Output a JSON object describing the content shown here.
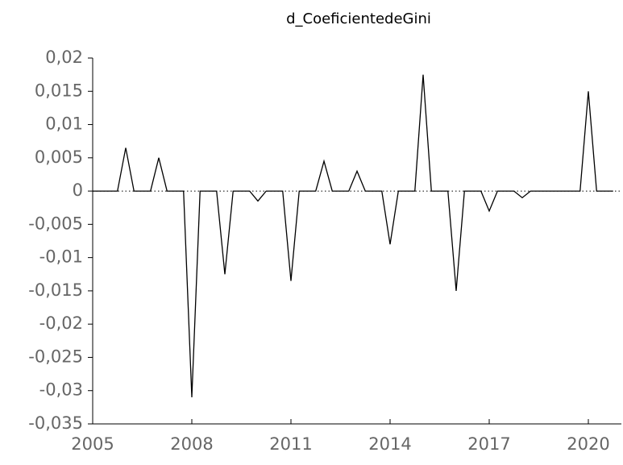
{
  "chart_data": {
    "type": "line",
    "title": "d_CoeficientedeGini",
    "x": [
      2005,
      2005.25,
      2005.5,
      2005.75,
      2006,
      2006.25,
      2006.5,
      2006.75,
      2007,
      2007.25,
      2007.5,
      2007.75,
      2008,
      2008.25,
      2008.5,
      2008.75,
      2009,
      2009.25,
      2009.5,
      2009.75,
      2010,
      2010.25,
      2010.5,
      2010.75,
      2011,
      2011.25,
      2011.5,
      2011.75,
      2012,
      2012.25,
      2012.5,
      2012.75,
      2013,
      2013.25,
      2013.5,
      2013.75,
      2014,
      2014.25,
      2014.5,
      2014.75,
      2015,
      2015.25,
      2015.5,
      2015.75,
      2016,
      2016.25,
      2016.5,
      2016.75,
      2017,
      2017.25,
      2017.5,
      2017.75,
      2018,
      2018.25,
      2018.5,
      2018.75,
      2019,
      2019.25,
      2019.5,
      2019.75,
      2020,
      2020.25,
      2020.5,
      2020.75
    ],
    "series": [
      {
        "name": "d_CoeficientedeGini",
        "color": "#000000",
        "values": [
          0,
          0,
          0,
          0,
          0.0065,
          0,
          0,
          0,
          0.005,
          0,
          0,
          0,
          -0.031,
          0,
          0,
          0,
          -0.0125,
          0,
          0,
          0,
          -0.0015,
          0,
          0,
          0,
          -0.0135,
          0,
          0,
          0,
          0.0045,
          0,
          0,
          0,
          0.003,
          0,
          0,
          0,
          -0.008,
          0,
          0,
          0,
          0.0175,
          0,
          0,
          0,
          -0.015,
          0,
          0,
          0,
          -0.003,
          0,
          0,
          0,
          -0.001,
          0,
          0,
          0,
          0,
          0,
          0,
          0,
          0.015,
          0,
          0,
          0
        ]
      }
    ],
    "xlim": [
      2005,
      2021
    ],
    "xticks": [
      2005,
      2008,
      2011,
      2014,
      2017,
      2020
    ],
    "ylim": [
      -0.035,
      0.02
    ],
    "yticks": [
      {
        "value": 0.02,
        "label": "0,02"
      },
      {
        "value": 0.015,
        "label": "0,015"
      },
      {
        "value": 0.01,
        "label": "0,01"
      },
      {
        "value": 0.005,
        "label": "0,005"
      },
      0,
      {
        "value": -0.005,
        "label": "-0,005"
      },
      {
        "value": -0.01,
        "label": "-0,01"
      },
      {
        "value": -0.015,
        "label": "-0,015"
      },
      {
        "value": -0.02,
        "label": "-0,02"
      },
      {
        "value": -0.025,
        "label": "-0,025"
      },
      {
        "value": -0.03,
        "label": "-0,03"
      },
      {
        "value": -0.035,
        "label": "-0,035"
      }
    ],
    "zero_line": true
  }
}
